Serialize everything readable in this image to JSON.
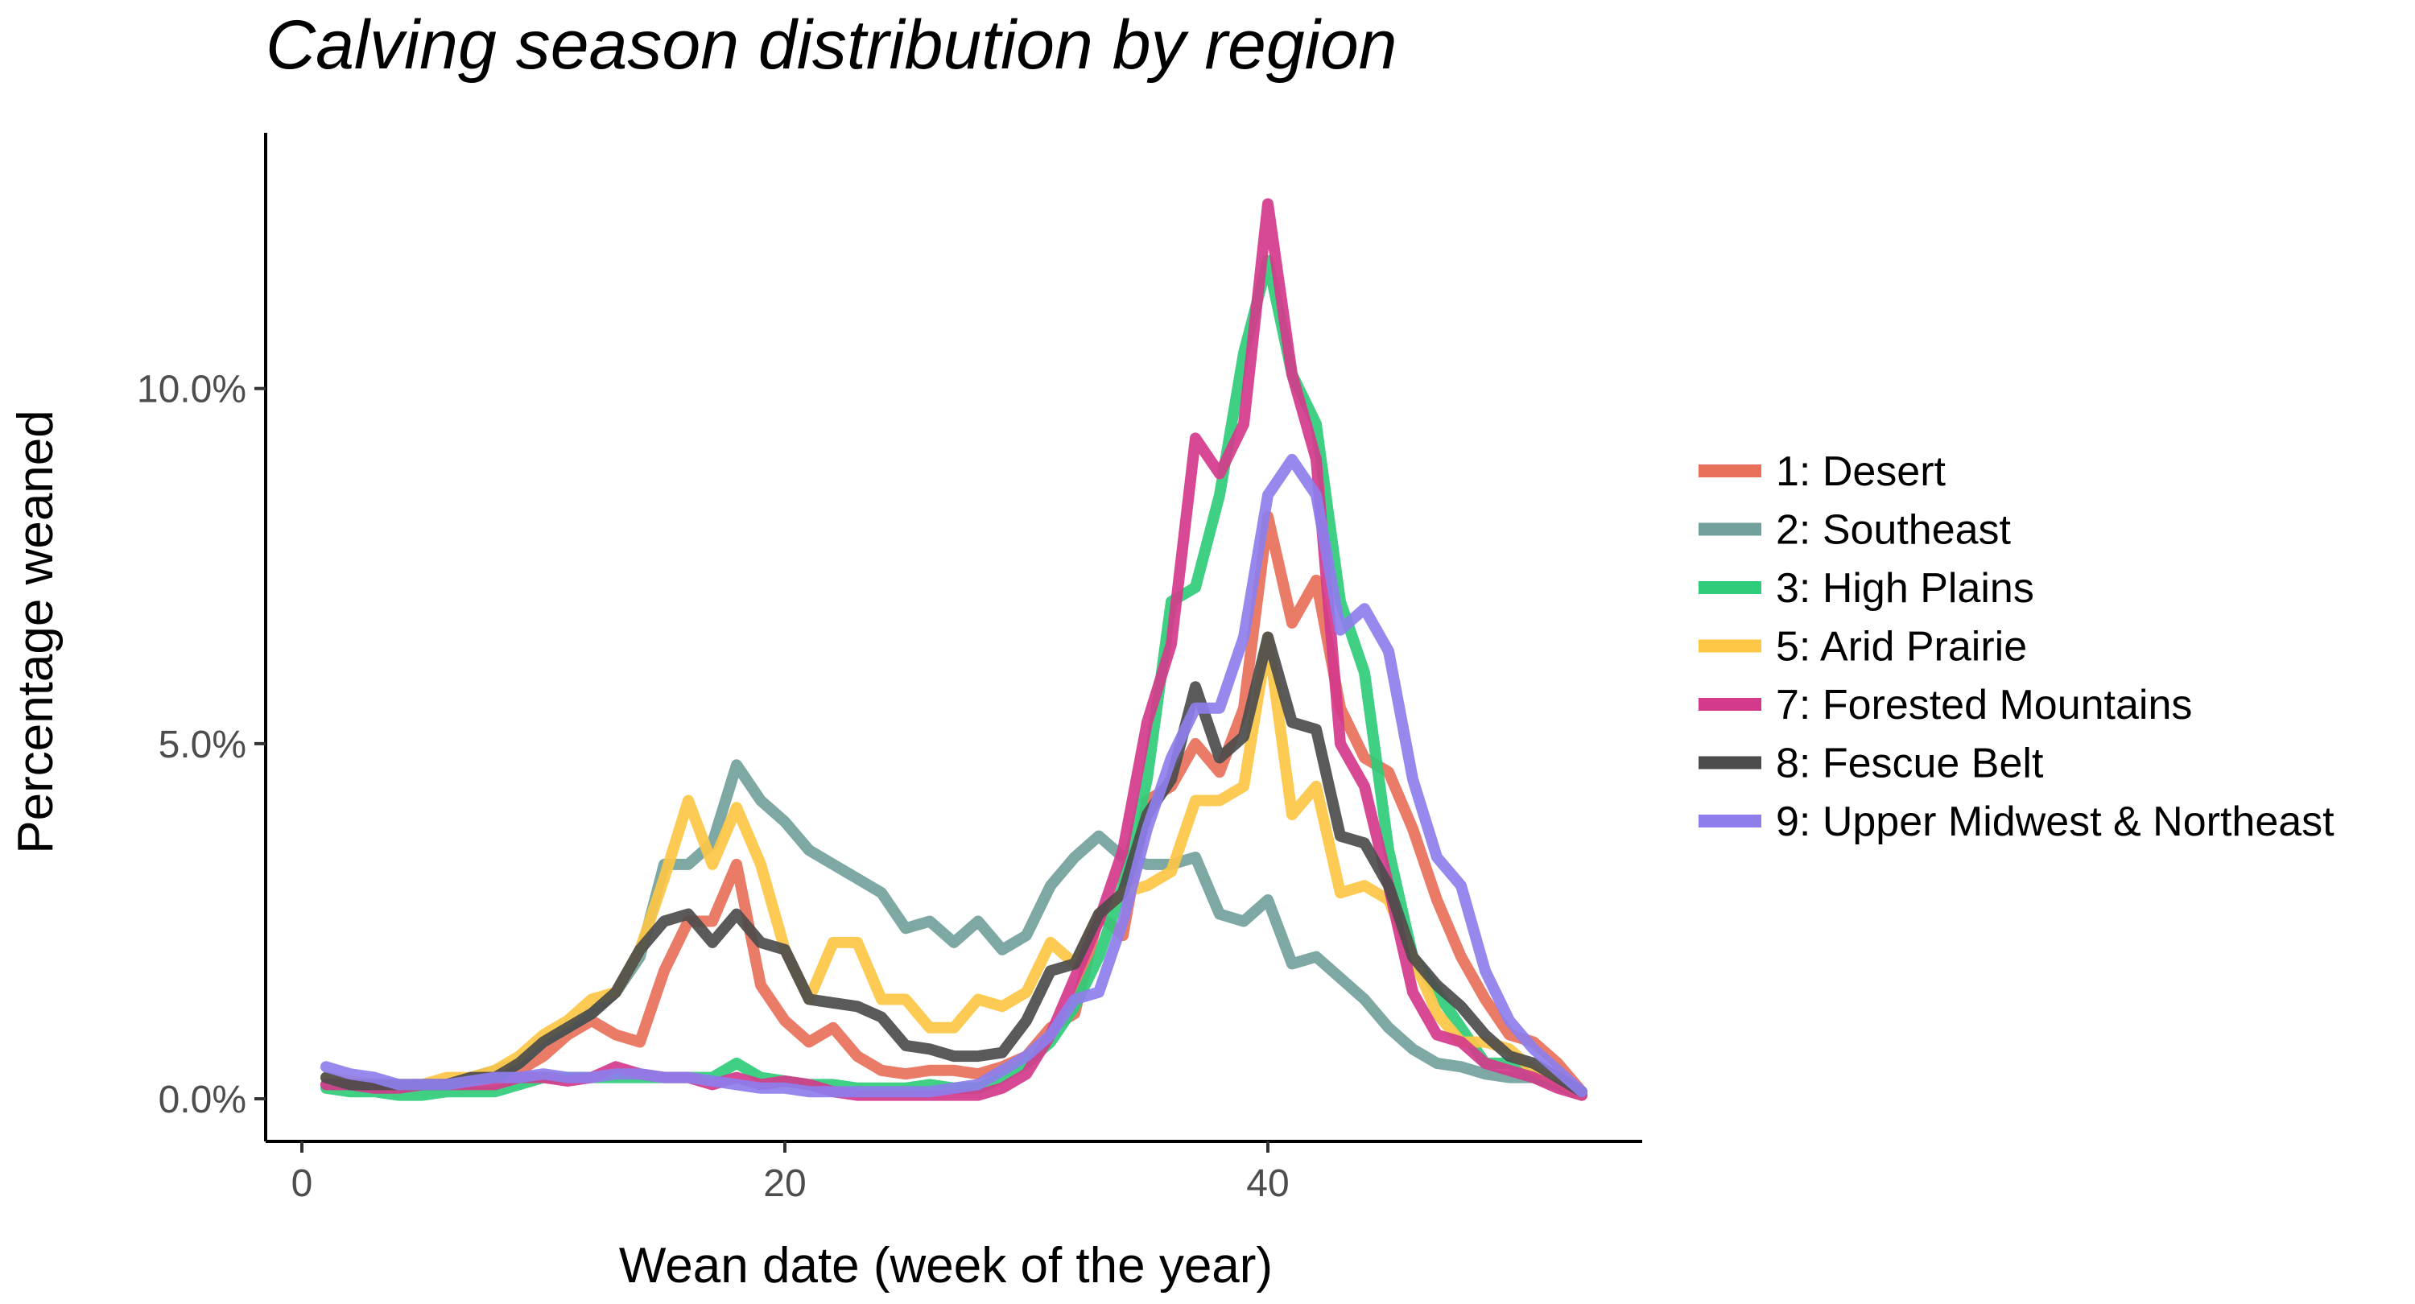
{
  "chart_data": {
    "type": "line",
    "title": "Calving season distribution by region",
    "xlabel": "Wean date (week of the year)",
    "ylabel": "Percentage weaned",
    "xlim": [
      -1.5,
      55.5
    ],
    "ylim": [
      -0.6,
      13.6
    ],
    "xticks": [
      0,
      20,
      40
    ],
    "xtick_labels": [
      "0",
      "20",
      "40"
    ],
    "yticks": [
      0,
      5,
      10
    ],
    "ytick_labels": [
      "0.0%",
      "5.0%",
      "10.0%"
    ],
    "grid": false,
    "legend": "right",
    "x": [
      1,
      2,
      3,
      4,
      5,
      6,
      7,
      8,
      9,
      10,
      11,
      12,
      13,
      14,
      15,
      16,
      17,
      18,
      19,
      20,
      21,
      22,
      23,
      24,
      25,
      26,
      27,
      28,
      29,
      30,
      31,
      32,
      33,
      34,
      35,
      36,
      37,
      38,
      39,
      40,
      41,
      42,
      43,
      44,
      45,
      46,
      47,
      48,
      49,
      50,
      51,
      52,
      53
    ],
    "series": [
      {
        "name": "1: Desert",
        "color": "#e8705a",
        "values": [
          0.2,
          0.2,
          0.15,
          0.15,
          0.2,
          0.2,
          0.3,
          0.3,
          0.4,
          0.6,
          0.9,
          1.1,
          0.9,
          0.8,
          1.8,
          2.5,
          2.5,
          3.3,
          1.6,
          1.1,
          0.8,
          1.0,
          0.6,
          0.4,
          0.35,
          0.4,
          0.4,
          0.35,
          0.45,
          0.6,
          1.0,
          1.2,
          2.6,
          2.3,
          4.2,
          4.4,
          5.0,
          4.6,
          5.5,
          8.2,
          6.7,
          7.3,
          5.5,
          4.8,
          4.6,
          3.8,
          2.8,
          2.0,
          1.4,
          0.9,
          0.8,
          0.5,
          0.1
        ]
      },
      {
        "name": "2: Southeast",
        "color": "#72a19c",
        "values": [
          0.2,
          0.2,
          0.15,
          0.15,
          0.2,
          0.2,
          0.3,
          0.4,
          0.5,
          0.8,
          1.0,
          1.2,
          1.5,
          2.0,
          3.3,
          3.3,
          3.6,
          4.7,
          4.2,
          3.9,
          3.5,
          3.3,
          3.1,
          2.9,
          2.4,
          2.5,
          2.2,
          2.5,
          2.1,
          2.3,
          3.0,
          3.4,
          3.7,
          3.4,
          3.3,
          3.3,
          3.4,
          2.6,
          2.5,
          2.8,
          1.9,
          2.0,
          1.7,
          1.4,
          1.0,
          0.7,
          0.5,
          0.45,
          0.35,
          0.3,
          0.3,
          0.2,
          0.05
        ]
      },
      {
        "name": "3: High Plains",
        "color": "#2fcc7a",
        "values": [
          0.15,
          0.1,
          0.1,
          0.05,
          0.05,
          0.1,
          0.1,
          0.1,
          0.2,
          0.3,
          0.3,
          0.3,
          0.3,
          0.3,
          0.3,
          0.3,
          0.3,
          0.5,
          0.3,
          0.25,
          0.2,
          0.2,
          0.15,
          0.15,
          0.15,
          0.2,
          0.15,
          0.15,
          0.3,
          0.5,
          0.8,
          1.3,
          2.0,
          3.0,
          4.5,
          7.0,
          7.2,
          8.5,
          10.5,
          11.8,
          10.2,
          9.5,
          7.0,
          6.0,
          3.5,
          2.0,
          1.5,
          1.0,
          0.5,
          0.5,
          0.3,
          0.2,
          0.05
        ]
      },
      {
        "name": "5: Arid Prairie",
        "color": "#fdc745",
        "values": [
          0.3,
          0.25,
          0.2,
          0.2,
          0.2,
          0.3,
          0.3,
          0.4,
          0.6,
          0.9,
          1.1,
          1.4,
          1.5,
          2.1,
          3.1,
          4.2,
          3.3,
          4.1,
          3.3,
          2.1,
          1.4,
          2.2,
          2.2,
          1.4,
          1.4,
          1.0,
          1.0,
          1.4,
          1.3,
          1.5,
          2.2,
          1.9,
          2.6,
          2.9,
          3.0,
          3.2,
          4.2,
          4.2,
          4.4,
          6.5,
          4.0,
          4.4,
          2.9,
          3.0,
          2.8,
          2.0,
          1.2,
          0.8,
          0.8,
          0.7,
          0.4,
          0.25,
          0.05
        ]
      },
      {
        "name": "7: Forested Mountains",
        "color": "#d43a8b",
        "values": [
          0.2,
          0.2,
          0.15,
          0.15,
          0.2,
          0.2,
          0.2,
          0.2,
          0.3,
          0.3,
          0.25,
          0.3,
          0.45,
          0.35,
          0.3,
          0.3,
          0.2,
          0.3,
          0.2,
          0.25,
          0.2,
          0.1,
          0.05,
          0.05,
          0.05,
          0.05,
          0.05,
          0.05,
          0.15,
          0.35,
          0.9,
          1.7,
          2.5,
          3.5,
          5.3,
          6.4,
          9.3,
          8.8,
          9.5,
          12.6,
          10.2,
          9.0,
          5.0,
          4.4,
          3.0,
          1.5,
          0.9,
          0.8,
          0.5,
          0.4,
          0.3,
          0.15,
          0.05
        ]
      },
      {
        "name": "8: Fescue Belt",
        "color": "#4c4c4c",
        "values": [
          0.3,
          0.2,
          0.2,
          0.2,
          0.2,
          0.2,
          0.3,
          0.3,
          0.5,
          0.8,
          1.0,
          1.2,
          1.5,
          2.1,
          2.5,
          2.6,
          2.2,
          2.6,
          2.2,
          2.1,
          1.4,
          1.35,
          1.3,
          1.15,
          0.75,
          0.7,
          0.6,
          0.6,
          0.65,
          1.1,
          1.8,
          1.9,
          2.6,
          2.9,
          4.0,
          4.5,
          5.8,
          4.8,
          5.1,
          6.5,
          5.3,
          5.2,
          3.7,
          3.6,
          3.0,
          2.0,
          1.6,
          1.3,
          0.9,
          0.6,
          0.5,
          0.3,
          0.1
        ]
      },
      {
        "name": "9: Upper Midwest & Northeast",
        "color": "#8d7eec",
        "values": [
          0.45,
          0.35,
          0.3,
          0.2,
          0.2,
          0.2,
          0.25,
          0.3,
          0.3,
          0.35,
          0.3,
          0.3,
          0.35,
          0.35,
          0.3,
          0.3,
          0.25,
          0.2,
          0.15,
          0.15,
          0.1,
          0.1,
          0.1,
          0.1,
          0.1,
          0.1,
          0.15,
          0.2,
          0.4,
          0.6,
          0.9,
          1.4,
          1.5,
          2.5,
          3.8,
          4.8,
          5.5,
          5.5,
          6.5,
          8.5,
          9.0,
          8.5,
          6.6,
          6.9,
          6.3,
          4.5,
          3.4,
          3.0,
          1.8,
          1.1,
          0.7,
          0.4,
          0.1
        ]
      }
    ]
  }
}
